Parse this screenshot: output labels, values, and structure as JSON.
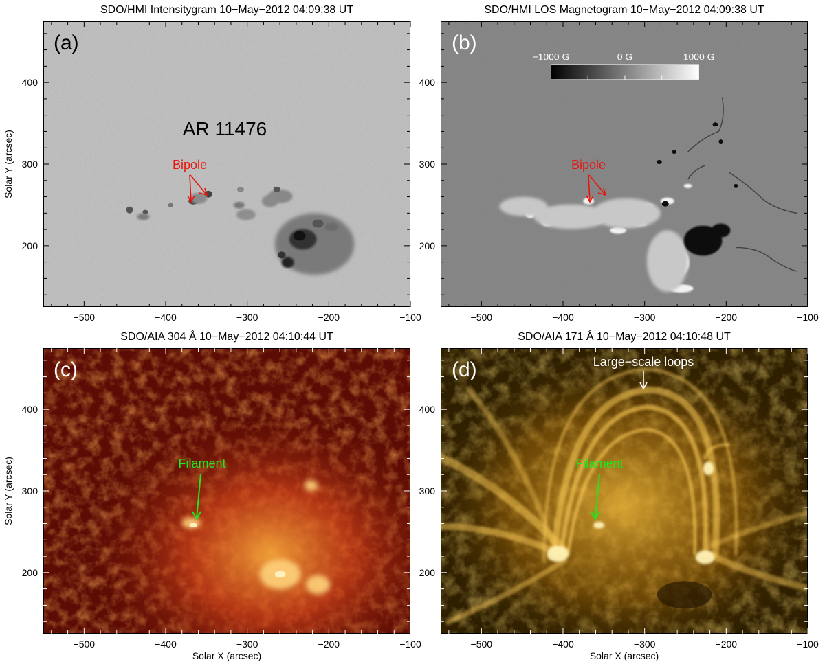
{
  "figure": {
    "panels": [
      {
        "id": "a",
        "title": "SDO/HMI Intensitygram  10−May−2012 04:09:38 UT",
        "letter": "(a)",
        "region_label": "AR 11476",
        "feature_label": "Bipole",
        "feature_color": "#e8150e",
        "ylabel": "Solar Y (arcsec)",
        "xlabel": ""
      },
      {
        "id": "b",
        "title": "SDO/HMI LOS Magnetogram  10−May−2012 04:09:38 UT",
        "letter": "(b)",
        "feature_label": "Bipole",
        "feature_color": "#e8150e",
        "colorbar": {
          "min_label": "−1000 G",
          "mid_label": "0 G",
          "max_label": "1000 G"
        },
        "ylabel": "",
        "xlabel": ""
      },
      {
        "id": "c",
        "title": "SDO/AIA 304 Å  10−May−2012 04:10:44 UT",
        "letter": "(c)",
        "feature_label": "Filament",
        "feature_color": "#1fe81f",
        "ylabel": "Solar Y (arcsec)",
        "xlabel": "Solar X (arcsec)"
      },
      {
        "id": "d",
        "title": "SDO/AIA 171 Å  10−May−2012 04:10:48 UT",
        "letter": "(d)",
        "feature_label": "Filament",
        "feature_color": "#1fe81f",
        "loops_label": "Large−scale loops",
        "ylabel": "",
        "xlabel": "Solar X (arcsec)"
      }
    ],
    "x_ticks": [
      "−500",
      "−400",
      "−300",
      "−200",
      "−100"
    ],
    "y_ticks": [
      "400",
      "300",
      "200"
    ]
  }
}
